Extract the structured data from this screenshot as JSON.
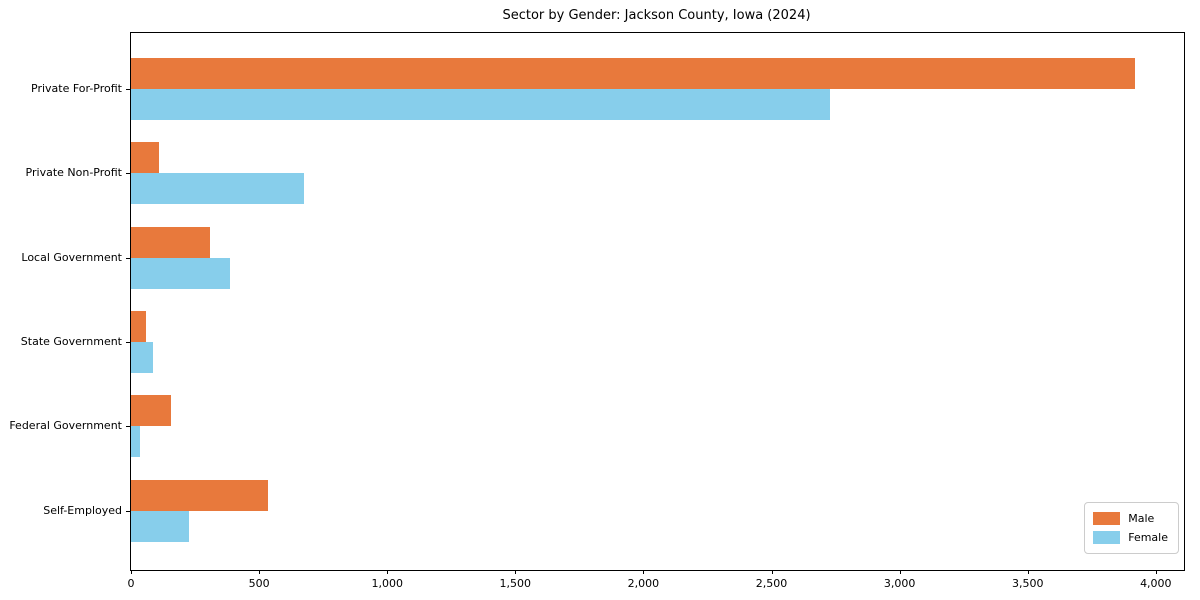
{
  "header": {
    "title": "Sector by Gender: Jackson County, Iowa (2024)"
  },
  "chart_data": {
    "type": "bar",
    "orientation": "horizontal",
    "title": "Sector by Gender: Jackson County, Iowa (2024)",
    "categories": [
      "Private For-Profit",
      "Private Non-Profit",
      "Local Government",
      "State Government",
      "Federal Government",
      "Self-Employed"
    ],
    "series": [
      {
        "name": "Male",
        "color": "#E8793C",
        "values": [
          3920,
          110,
          310,
          60,
          155,
          535
        ]
      },
      {
        "name": "Female",
        "color": "#87CEEB",
        "values": [
          2730,
          675,
          385,
          85,
          35,
          225
        ]
      }
    ],
    "xlabel": "",
    "ylabel": "",
    "xlim": [
      0,
      4110
    ],
    "xticks": [
      0,
      500,
      1000,
      1500,
      2000,
      2500,
      3000,
      3500,
      4000
    ],
    "xtick_labels": [
      "0",
      "500",
      "1,000",
      "1,500",
      "2,000",
      "2,500",
      "3,000",
      "3,500",
      "4,000"
    ],
    "grid": false,
    "plot_background": "#ffffff",
    "spine_color": "#000000",
    "legend": {
      "position": "lower right",
      "entries": [
        "Male",
        "Female"
      ]
    }
  }
}
